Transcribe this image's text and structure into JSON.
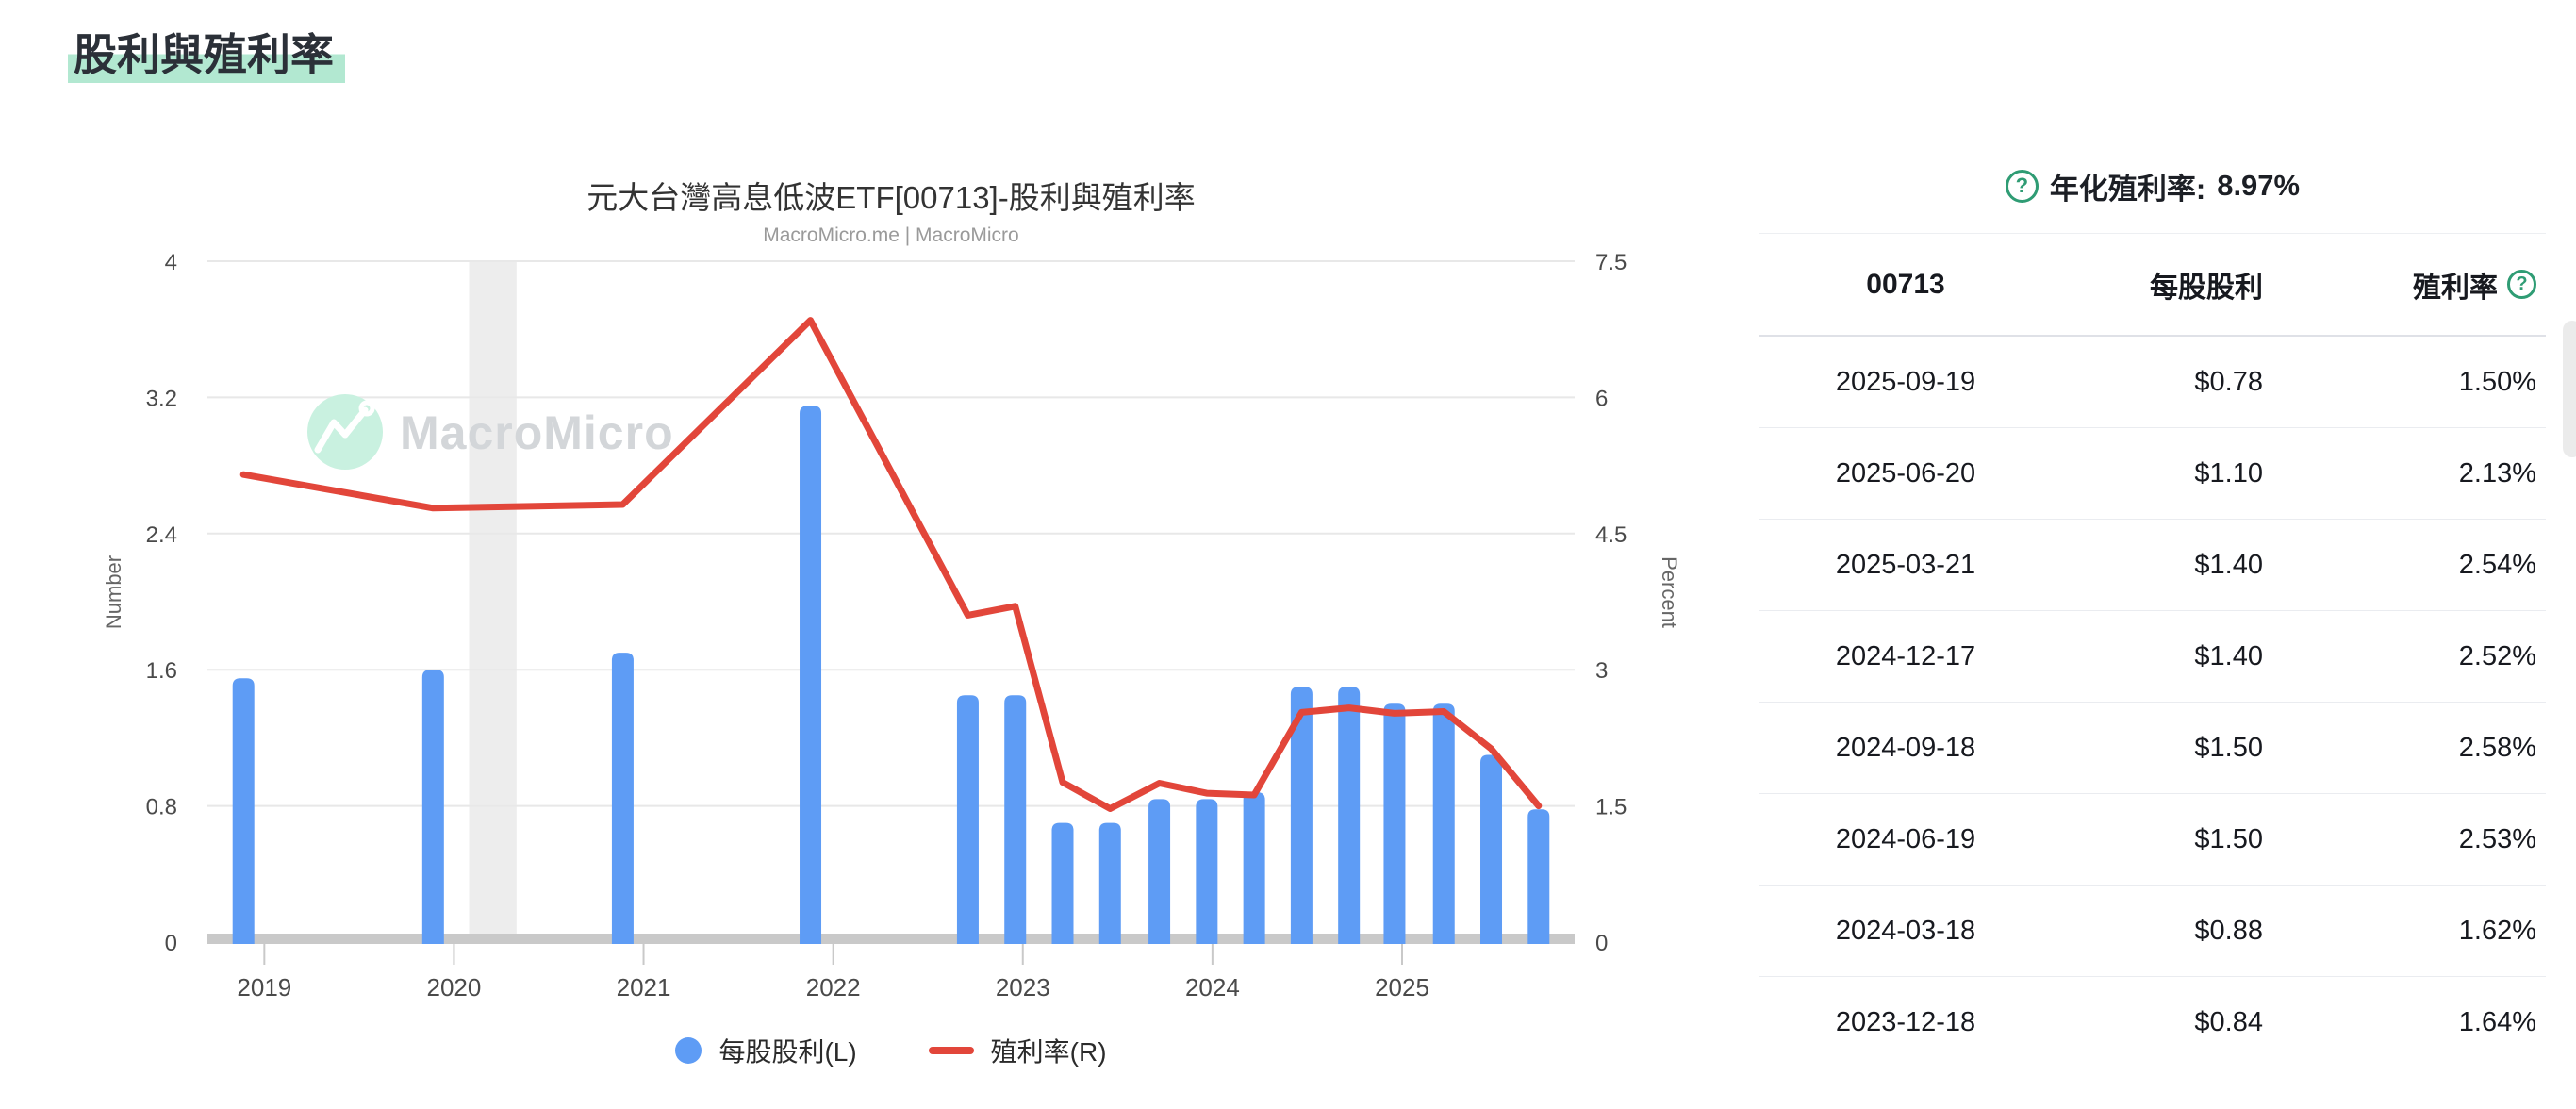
{
  "page": {
    "title": "股利與殖利率",
    "highlight_color": "#b2e8d1"
  },
  "icons": {
    "question": "?"
  },
  "chart": {
    "title": "元大台灣高息低波ETF[00713]-股利與殖利率",
    "subtitle": "MacroMicro.me | MacroMicro",
    "watermark_text": "MacroMicro",
    "left_axis_label": "Number",
    "right_axis_label": "Percent",
    "legend": [
      {
        "label": "每股股利(L)",
        "swatch": "circle",
        "color": "#5e9cf5"
      },
      {
        "label": "殖利率(R)",
        "swatch": "line",
        "color": "#e2463a"
      }
    ]
  },
  "chart_data": {
    "type": "bar+line",
    "title": "元大台灣高息低波ETF[00713]-股利與殖利率",
    "x_range": [
      2018.7,
      2025.91
    ],
    "left_ylim": [
      0,
      4
    ],
    "right_ylim": [
      0,
      7.5
    ],
    "left_ticks": [
      "0",
      "0.8",
      "1.6",
      "2.4",
      "3.2",
      "4"
    ],
    "right_ticks": [
      "0",
      "1.5",
      "3",
      "4.5",
      "6",
      "7.5"
    ],
    "year_ticks": [
      "2019",
      "2020",
      "2021",
      "2022",
      "2023",
      "2024",
      "2025"
    ],
    "grid": "horizontal",
    "recession_band_x": [
      2020.08,
      2020.33
    ],
    "series": [
      {
        "name": "每股股利(L)",
        "type": "bar",
        "axis": "left",
        "color": "#5e9cf5",
        "x": [
          2018.89,
          2019.89,
          2020.89,
          2021.88,
          2022.71,
          2022.96,
          2023.21,
          2023.46,
          2023.72,
          2023.97,
          2024.22,
          2024.47,
          2024.72,
          2024.96,
          2025.22,
          2025.47,
          2025.72
        ],
        "values": [
          1.55,
          1.6,
          1.7,
          3.15,
          1.45,
          1.45,
          0.7,
          0.7,
          0.84,
          0.84,
          0.88,
          1.5,
          1.5,
          1.4,
          1.4,
          1.1,
          0.78
        ]
      },
      {
        "name": "殖利率(R)",
        "type": "line",
        "axis": "right",
        "color": "#e2463a",
        "x": [
          2018.89,
          2019.89,
          2020.89,
          2021.88,
          2022.71,
          2022.96,
          2023.21,
          2023.46,
          2023.72,
          2023.97,
          2024.22,
          2024.47,
          2024.72,
          2024.96,
          2025.22,
          2025.47,
          2025.72
        ],
        "values": [
          5.15,
          4.78,
          4.82,
          6.85,
          3.6,
          3.7,
          1.76,
          1.47,
          1.75,
          1.64,
          1.62,
          2.53,
          2.58,
          2.52,
          2.54,
          2.13,
          1.5
        ]
      }
    ]
  },
  "summary": {
    "label": "年化殖利率:",
    "value": "8.97%"
  },
  "table": {
    "headers": [
      "00713",
      "每股股利",
      "殖利率"
    ],
    "rows": [
      [
        "2025-09-19",
        "$0.78",
        "1.50%"
      ],
      [
        "2025-06-20",
        "$1.10",
        "2.13%"
      ],
      [
        "2025-03-21",
        "$1.40",
        "2.54%"
      ],
      [
        "2024-12-17",
        "$1.40",
        "2.52%"
      ],
      [
        "2024-09-18",
        "$1.50",
        "2.58%"
      ],
      [
        "2024-06-19",
        "$1.50",
        "2.53%"
      ],
      [
        "2024-03-18",
        "$0.88",
        "1.62%"
      ],
      [
        "2023-12-18",
        "$0.84",
        "1.64%"
      ]
    ]
  },
  "colors": {
    "bar_blue": "#5e9cf5",
    "line_red": "#e2463a",
    "grid_line": "#e8e8e8",
    "axis_band": "#c9c9c9",
    "recession_band": "#ededed",
    "tick_text": "#4a4a4a",
    "axis_title_text": "#666666",
    "watermark_mint": "#c9f1e0",
    "watermark_gray": "#d3d6d9",
    "green_accent": "#2f9c74"
  }
}
